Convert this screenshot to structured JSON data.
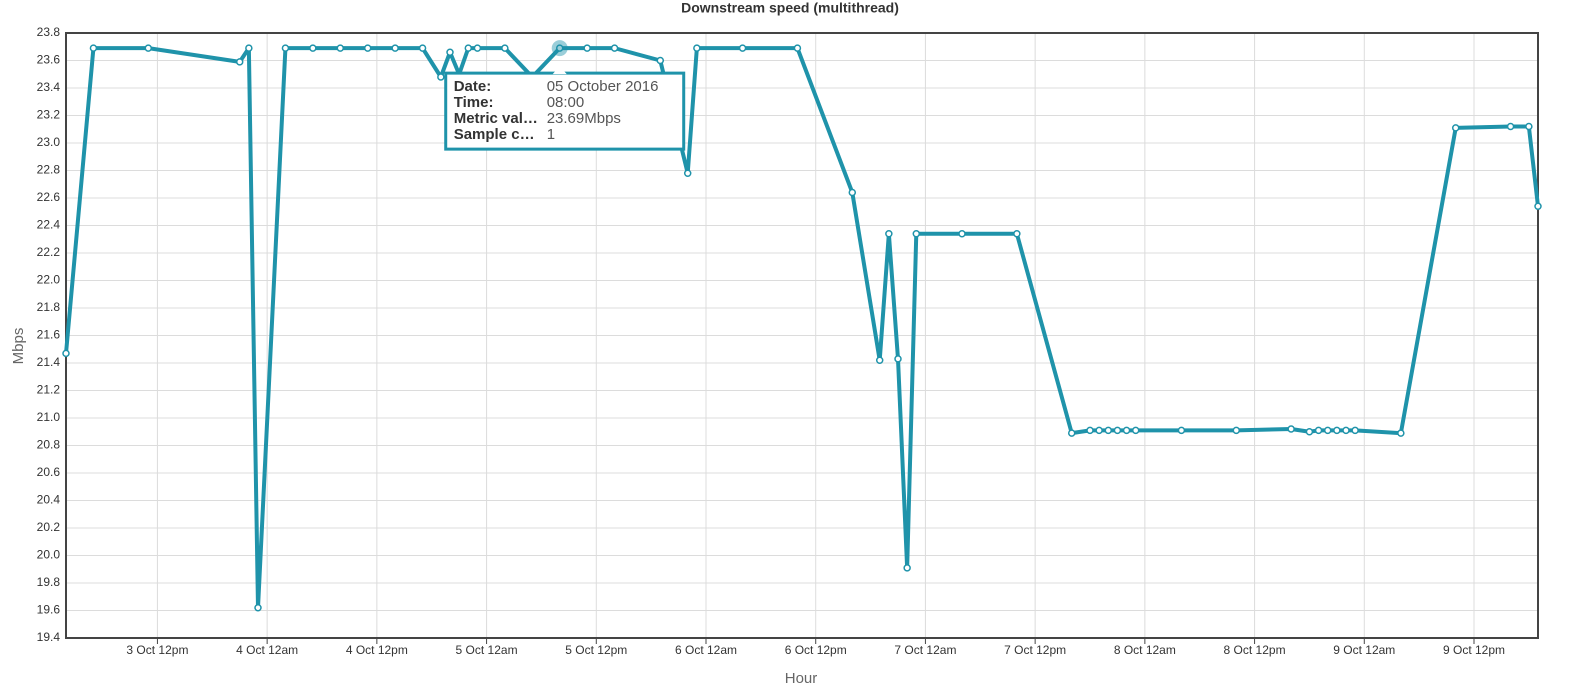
{
  "chart_data": {
    "type": "line",
    "title": "Downstream speed (multithread)",
    "x_label": "Hour",
    "y_label": "Mbps",
    "x": [
      "2016-10-03T02:00",
      "2016-10-03T05:00",
      "2016-10-03T11:00",
      "2016-10-03T21:00",
      "2016-10-03T22:00",
      "2016-10-03T23:00",
      "2016-10-04T02:00",
      "2016-10-04T05:00",
      "2016-10-04T08:00",
      "2016-10-04T11:00",
      "2016-10-04T14:00",
      "2016-10-04T17:00",
      "2016-10-04T19:00",
      "2016-10-04T20:00",
      "2016-10-04T21:00",
      "2016-10-04T22:00",
      "2016-10-04T23:00",
      "2016-10-05T02:00",
      "2016-10-05T05:00",
      "2016-10-05T08:00",
      "2016-10-05T11:00",
      "2016-10-05T14:00",
      "2016-10-05T19:00",
      "2016-10-05T22:00",
      "2016-10-05T23:00",
      "2016-10-06T04:00",
      "2016-10-06T10:00",
      "2016-10-06T16:00",
      "2016-10-06T19:00",
      "2016-10-06T20:00",
      "2016-10-06T21:00",
      "2016-10-06T22:00",
      "2016-10-06T23:00",
      "2016-10-07T04:00",
      "2016-10-07T10:00",
      "2016-10-07T16:00",
      "2016-10-07T18:00",
      "2016-10-07T19:00",
      "2016-10-07T20:00",
      "2016-10-07T21:00",
      "2016-10-07T22:00",
      "2016-10-07T23:00",
      "2016-10-08T04:00",
      "2016-10-08T10:00",
      "2016-10-08T16:00",
      "2016-10-08T18:00",
      "2016-10-08T19:00",
      "2016-10-08T20:00",
      "2016-10-08T21:00",
      "2016-10-08T22:00",
      "2016-10-08T23:00",
      "2016-10-09T04:00",
      "2016-10-09T10:00",
      "2016-10-09T16:00",
      "2016-10-09T18:00",
      "2016-10-09T19:00"
    ],
    "series": [
      {
        "name": "Downstream speed",
        "color": "#1f93aa",
        "values": [
          21.47,
          23.69,
          23.69,
          23.59,
          23.69,
          19.62,
          23.69,
          23.69,
          23.69,
          23.69,
          23.69,
          23.69,
          23.48,
          23.66,
          23.5,
          23.69,
          23.69,
          23.69,
          23.48,
          23.69,
          23.69,
          23.69,
          23.6,
          22.78,
          23.69,
          23.69,
          23.69,
          22.64,
          21.42,
          22.34,
          21.43,
          19.91,
          22.34,
          22.34,
          22.34,
          20.89,
          20.91,
          20.91,
          20.91,
          20.91,
          20.91,
          20.91,
          20.91,
          20.91,
          20.92,
          20.9,
          20.91,
          20.91,
          20.91,
          20.91,
          20.91,
          20.89,
          23.11,
          23.12,
          23.12,
          22.54
        ]
      }
    ],
    "xlim": [
      "2016-10-03T02:00",
      "2016-10-09T19:00"
    ],
    "xticks": [
      {
        "value": "2016-10-03T12:00",
        "label": "3 Oct 12pm"
      },
      {
        "value": "2016-10-04T00:00",
        "label": "4 Oct 12am"
      },
      {
        "value": "2016-10-04T12:00",
        "label": "4 Oct 12pm"
      },
      {
        "value": "2016-10-05T00:00",
        "label": "5 Oct 12am"
      },
      {
        "value": "2016-10-05T12:00",
        "label": "5 Oct 12pm"
      },
      {
        "value": "2016-10-06T00:00",
        "label": "6 Oct 12am"
      },
      {
        "value": "2016-10-06T12:00",
        "label": "6 Oct 12pm"
      },
      {
        "value": "2016-10-07T00:00",
        "label": "7 Oct 12am"
      },
      {
        "value": "2016-10-07T12:00",
        "label": "7 Oct 12pm"
      },
      {
        "value": "2016-10-08T00:00",
        "label": "8 Oct 12am"
      },
      {
        "value": "2016-10-08T12:00",
        "label": "8 Oct 12pm"
      },
      {
        "value": "2016-10-09T00:00",
        "label": "9 Oct 12am"
      },
      {
        "value": "2016-10-09T12:00",
        "label": "9 Oct 12pm"
      }
    ],
    "ylim": [
      19.4,
      23.8
    ],
    "yticks": [
      19.4,
      19.6,
      19.8,
      {
        "value": 20,
        "label": "20.0"
      },
      20.2,
      20.4,
      20.6,
      20.8,
      {
        "value": 21,
        "label": "21.0"
      },
      21.2,
      21.4,
      21.6,
      21.8,
      {
        "value": 22,
        "label": "22.0"
      },
      22.2,
      22.4,
      22.6,
      22.8,
      {
        "value": 23,
        "label": "23.0"
      },
      23.2,
      23.4,
      23.6,
      23.8
    ],
    "grid": true,
    "tooltip": {
      "point": 19,
      "rows": [
        [
          "Date:",
          "05 October 2016"
        ],
        [
          "Time:",
          "08:00"
        ],
        [
          "Metric val…",
          "23.69Mbps"
        ],
        [
          "Sample c…",
          "1"
        ]
      ]
    }
  }
}
